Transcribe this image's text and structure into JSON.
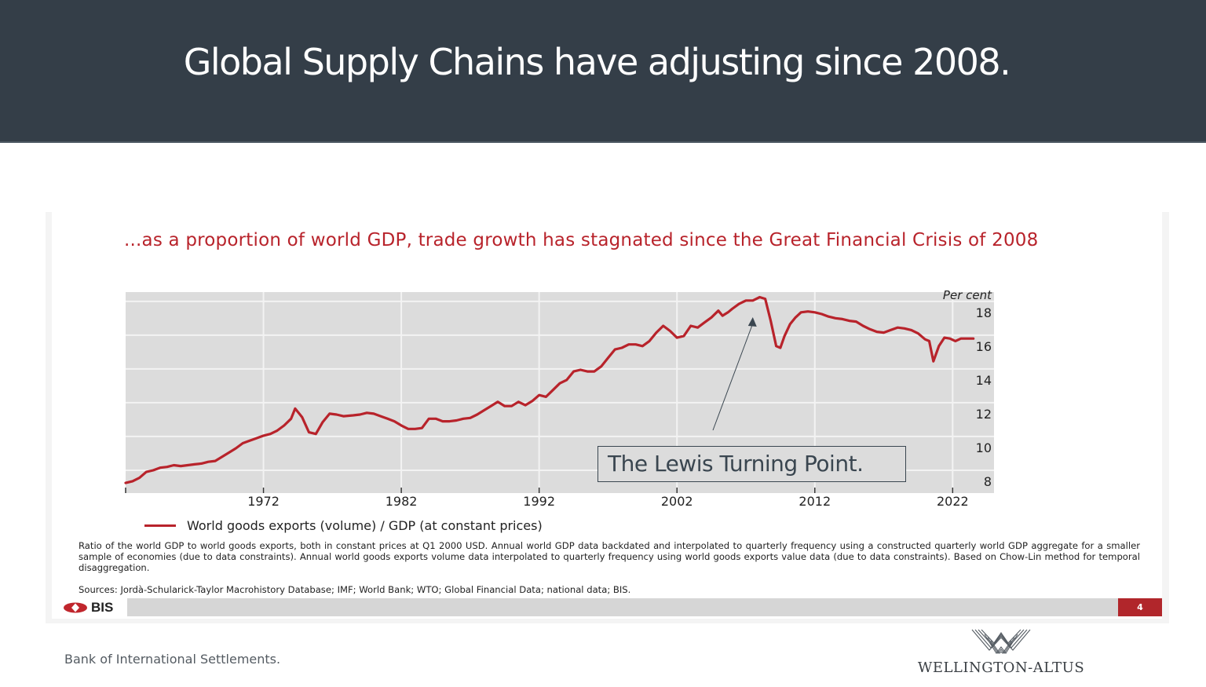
{
  "header": {
    "title": "Global Supply Chains have adjusting since 2008."
  },
  "slide": {
    "notes": "Ratio of the world GDP to world goods exports, both in constant prices at Q1 2000 USD. Annual world GDP data backdated and interpolated to quarterly frequency using a constructed quarterly world GDP aggregate for a smaller sample of economies (due to data constraints). Annual world goods exports volume data interpolated to quarterly frequency using world goods exports value data (due to data constraints). Based on Chow-Lin method for temporal disaggregation.",
    "sources": "Sources: Jordà-Schularick-Taylor Macrohistory Database; IMF; World Bank; WTO; Global Financial Data; national data; BIS.",
    "footer_logo": "BIS",
    "page_number": "4"
  },
  "annotation": {
    "text": "The Lewis Turning Point.",
    "points_to_year": 2007.5
  },
  "caption": "Bank of International Settlements.",
  "brand": {
    "name": "WELLINGTON-ALTUS"
  },
  "colors": {
    "header_bg": "#343e48",
    "accent_red": "#b8232b",
    "plot_bg": "#dcdcdc",
    "page_badge": "#b1262b"
  },
  "chart_data": {
    "type": "line",
    "title": "...as a proportion of world GDP, trade growth has stagnated since the Great Financial Crisis of 2008",
    "xlabel": "",
    "ylabel": "Per cent",
    "y_unit_label": "Per cent",
    "xlim": [
      1962,
      2025
    ],
    "ylim": [
      7.3,
      19.2
    ],
    "x_ticks": [
      1972,
      1982,
      1992,
      2002,
      2012,
      2022
    ],
    "x_tick_labels": [
      "1972",
      "1982",
      "1992",
      "2002",
      "2012",
      "2022"
    ],
    "y_ticks": [
      8,
      10,
      12,
      14,
      16,
      18
    ],
    "y_tick_labels": [
      "8",
      "10",
      "12",
      "14",
      "16",
      "18"
    ],
    "y_axis_side": "right",
    "grid": true,
    "legend_position": "bottom-left",
    "series": [
      {
        "name": "World goods exports (volume) / GDP (at constant prices)",
        "color": "#b8232b",
        "x": [
          1962.0,
          1962.5,
          1963.0,
          1963.5,
          1964.0,
          1964.5,
          1965.0,
          1965.5,
          1966.0,
          1966.5,
          1967.0,
          1967.5,
          1968.0,
          1968.5,
          1969.0,
          1969.5,
          1970.0,
          1970.5,
          1971.0,
          1971.5,
          1972.0,
          1972.5,
          1973.0,
          1973.5,
          1974.0,
          1974.3,
          1974.8,
          1975.3,
          1975.8,
          1976.3,
          1976.8,
          1977.3,
          1977.8,
          1978.5,
          1979.0,
          1979.5,
          1980.0,
          1980.5,
          1981.0,
          1981.5,
          1982.0,
          1982.5,
          1983.0,
          1983.5,
          1984.0,
          1984.5,
          1985.0,
          1985.5,
          1986.0,
          1986.5,
          1987.0,
          1987.5,
          1988.0,
          1988.5,
          1989.0,
          1989.5,
          1990.0,
          1990.5,
          1991.0,
          1991.5,
          1992.0,
          1992.5,
          1993.0,
          1993.5,
          1994.0,
          1994.5,
          1995.0,
          1995.5,
          1996.0,
          1996.5,
          1997.0,
          1997.5,
          1998.0,
          1998.5,
          1999.0,
          1999.5,
          2000.0,
          2000.5,
          2001.0,
          2001.5,
          2002.0,
          2002.5,
          2003.0,
          2003.5,
          2004.0,
          2004.5,
          2005.0,
          2005.3,
          2005.7,
          2006.0,
          2006.5,
          2007.0,
          2007.5,
          2008.0,
          2008.4,
          2008.8,
          2009.2,
          2009.5,
          2009.8,
          2010.2,
          2010.6,
          2011.0,
          2011.5,
          2012.0,
          2012.5,
          2013.0,
          2013.5,
          2014.0,
          2014.5,
          2015.0,
          2015.5,
          2016.0,
          2016.5,
          2017.0,
          2017.5,
          2018.0,
          2018.5,
          2019.0,
          2019.5,
          2020.0,
          2020.3,
          2020.6,
          2021.0,
          2021.4,
          2021.8,
          2022.2,
          2022.6,
          2023.0,
          2023.5
        ],
        "values": [
          7.9,
          8.0,
          8.2,
          8.55,
          8.65,
          8.8,
          8.85,
          8.95,
          8.9,
          8.95,
          9.0,
          9.05,
          9.15,
          9.2,
          9.45,
          9.7,
          9.95,
          10.25,
          10.4,
          10.55,
          10.7,
          10.8,
          11.0,
          11.3,
          11.7,
          12.3,
          11.8,
          10.9,
          10.8,
          11.5,
          12.0,
          11.95,
          11.85,
          11.9,
          11.95,
          12.05,
          12.0,
          11.85,
          11.7,
          11.55,
          11.3,
          11.1,
          11.1,
          11.15,
          11.7,
          11.7,
          11.55,
          11.55,
          11.6,
          11.7,
          11.75,
          11.95,
          12.2,
          12.45,
          12.7,
          12.45,
          12.45,
          12.7,
          12.5,
          12.75,
          13.1,
          13.0,
          13.4,
          13.8,
          14.0,
          14.5,
          14.6,
          14.5,
          14.5,
          14.8,
          15.3,
          15.8,
          15.9,
          16.1,
          16.1,
          16.0,
          16.3,
          16.8,
          17.2,
          16.9,
          16.5,
          16.6,
          17.2,
          17.1,
          17.4,
          17.7,
          18.1,
          17.8,
          18.0,
          18.2,
          18.5,
          18.7,
          18.7,
          18.9,
          18.8,
          17.5,
          16.0,
          15.9,
          16.6,
          17.3,
          17.7,
          18.0,
          18.05,
          18.0,
          17.9,
          17.75,
          17.65,
          17.6,
          17.5,
          17.45,
          17.2,
          17.0,
          16.85,
          16.8,
          16.95,
          17.1,
          17.05,
          16.95,
          16.75,
          16.4,
          16.3,
          15.1,
          16.0,
          16.5,
          16.45,
          16.3,
          16.45,
          16.45,
          16.45
        ]
      }
    ]
  }
}
